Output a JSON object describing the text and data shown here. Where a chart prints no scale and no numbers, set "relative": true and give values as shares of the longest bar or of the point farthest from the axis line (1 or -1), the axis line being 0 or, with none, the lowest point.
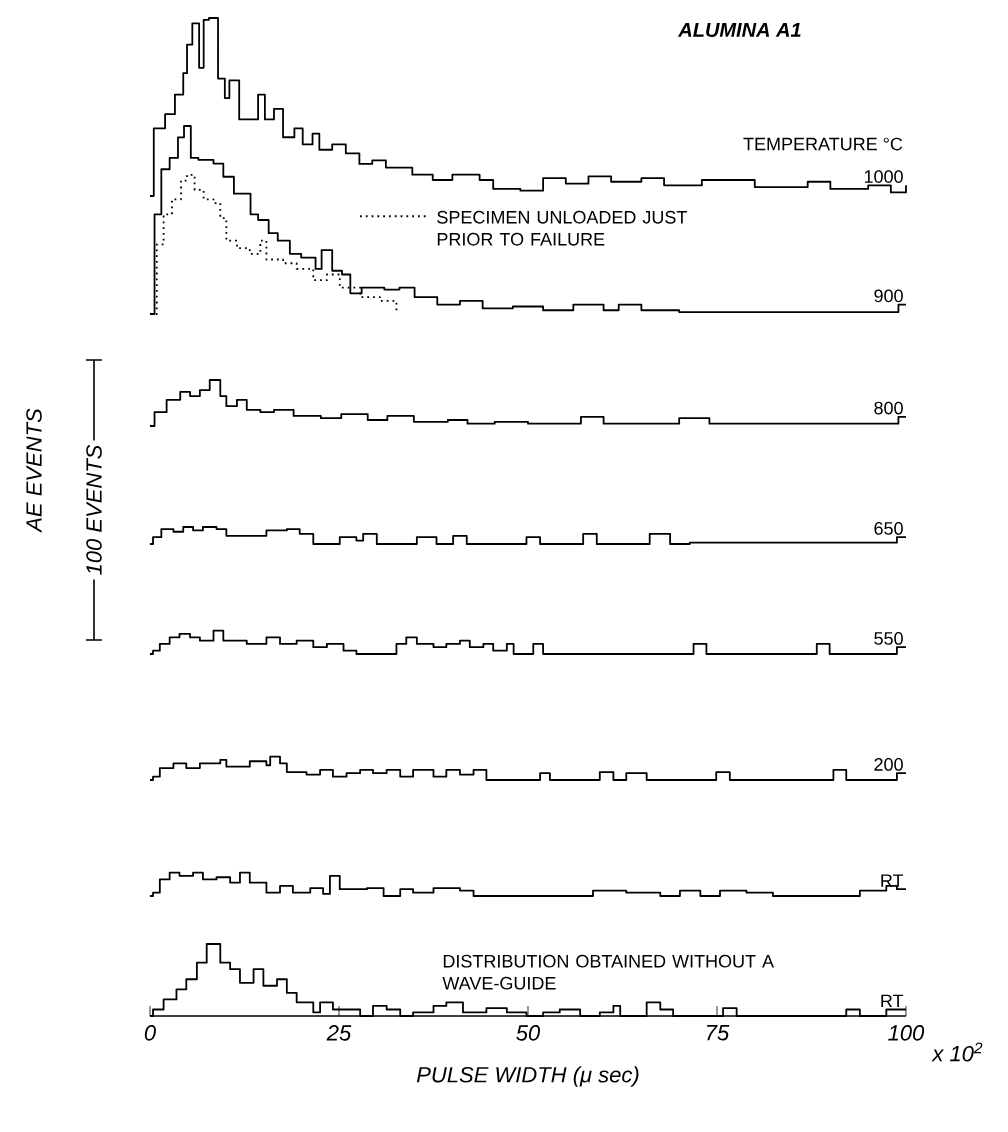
{
  "chart_data": [
    {
      "type": "step",
      "relative": true,
      "title": "ALUMINA A1",
      "annotations": [
        "TEMPERATURE °C",
        "100 EVENTS"
      ],
      "xlim": [
        0,
        100
      ],
      "tick_labels": false,
      "series": [
        {
          "name": "1000",
          "color": "#000000",
          "x": [
            0,
            0.5,
            2.0,
            3.3,
            4.4,
            4.9,
            5.6,
            6.5,
            7.1,
            7.8,
            9.0,
            9.9,
            10.5,
            11.8,
            14.3,
            15.2,
            16.4,
            17.6,
            19.1,
            20.2,
            21.5,
            22.4,
            24.1,
            25.9,
            27.7,
            29.4,
            31.2,
            34.7,
            37.4,
            40,
            43.6,
            45.4,
            49,
            52,
            55,
            58,
            61,
            65,
            68,
            73,
            80,
            87,
            90,
            95,
            98,
            100
          ],
          "values": [
            0,
            0.38,
            0.46,
            0.57,
            0.69,
            0.85,
            0.97,
            0.72,
            0.99,
            1,
            0.66,
            0.55,
            0.65,
            0.43,
            0.57,
            0.43,
            0.49,
            0.33,
            0.38,
            0.29,
            0.35,
            0.26,
            0.29,
            0.24,
            0.18,
            0.2,
            0.16,
            0.12,
            0.09,
            0.12,
            0.09,
            0.04,
            0.03,
            0.1,
            0.07,
            0.11,
            0.08,
            0.1,
            0.06,
            0.09,
            0.05,
            0.08,
            0.04,
            0.06,
            0.02,
            0.06
          ]
        }
      ]
    },
    {
      "type": "step",
      "relative": true,
      "xlim": [
        0,
        100
      ],
      "tick_labels": false,
      "series": [
        {
          "name": "900",
          "color": "#000000",
          "x": [
            0,
            0.6,
            1.5,
            2.6,
            3.7,
            4.5,
            5.4,
            6.4,
            8.4,
            9.7,
            11.1,
            13.3,
            14.3,
            15.7,
            16.9,
            18.5,
            20,
            21.9,
            22.7,
            24.1,
            25.4,
            26.5,
            28,
            31,
            33,
            35,
            38,
            41,
            44,
            48,
            52,
            56,
            60,
            62,
            65,
            70,
            99,
            100
          ],
          "values": [
            0,
            0.53,
            0.77,
            0.83,
            0.94,
            1,
            0.83,
            0.82,
            0.8,
            0.73,
            0.64,
            0.53,
            0.5,
            0.43,
            0.39,
            0.32,
            0.3,
            0.24,
            0.34,
            0.23,
            0.21,
            0.11,
            0.14,
            0.13,
            0.14,
            0.09,
            0.05,
            0.07,
            0.03,
            0.04,
            0.02,
            0.05,
            0.02,
            0.05,
            0.02,
            0.01,
            0.05,
            0.05
          ]
        },
        {
          "name": "SPECIMEN UNLOADED JUST PRIOR TO FAILURE",
          "color": "#000000",
          "line_style": "dotted",
          "x": [
            0,
            0.9,
            1.8,
            2.9,
            4.1,
            4.9,
            5.9,
            7.1,
            8.4,
            9.3,
            10.1,
            11.5,
            13.2,
            14.6,
            15.4,
            17.6,
            19.4,
            21.6,
            23.4,
            25.1,
            27.8,
            30.4,
            32.6
          ],
          "values": [
            0,
            0.37,
            0.53,
            0.61,
            0.71,
            0.74,
            0.66,
            0.61,
            0.59,
            0.51,
            0.39,
            0.35,
            0.32,
            0.39,
            0.29,
            0.27,
            0.24,
            0.18,
            0.21,
            0.14,
            0.09,
            0.07,
            0
          ]
        }
      ]
    },
    {
      "type": "step",
      "relative": true,
      "ylabel": "AE EVENTS",
      "xlim": [
        0,
        100
      ],
      "tick_labels": false,
      "series": [
        {
          "name": "800",
          "color": "#000000",
          "x": [
            0,
            0.6,
            2.2,
            4.0,
            5.3,
            6.6,
            7.9,
            9.3,
            10.1,
            11.5,
            12.8,
            14.6,
            16.4,
            19.0,
            22.6,
            25.3,
            28.8,
            31.4,
            34.9,
            39.4,
            42.0,
            45.6,
            50,
            57,
            60,
            70,
            74,
            99,
            100
          ],
          "values": [
            0,
            0.3,
            0.57,
            0.74,
            0.65,
            0.78,
            1,
            0.65,
            0.43,
            0.57,
            0.35,
            0.3,
            0.35,
            0.22,
            0.17,
            0.26,
            0.13,
            0.22,
            0.09,
            0.13,
            0.05,
            0.09,
            0.05,
            0.2,
            0.05,
            0.17,
            0.05,
            0.2,
            0.2
          ]
        }
      ]
    },
    {
      "type": "step",
      "relative": true,
      "xlim": [
        0,
        100
      ],
      "tick_labels": false,
      "series": [
        {
          "name": "650",
          "color": "#000000",
          "x": [
            0,
            0.4,
            1.5,
            3.1,
            4.4,
            5.7,
            7.0,
            8.8,
            10.1,
            12.8,
            15.4,
            18.1,
            19.8,
            21.6,
            25.1,
            27.3,
            28.2,
            30.0,
            35.3,
            37.9,
            40.1,
            41.9,
            49.8,
            51.6,
            57.3,
            59.1,
            66.1,
            68.8,
            71.4,
            98.8,
            100
          ],
          "values": [
            0,
            0.4,
            0.88,
            0.72,
            1,
            0.8,
            1,
            0.88,
            0.48,
            0.48,
            0.8,
            0.88,
            0.6,
            0,
            0.4,
            0.2,
            0.6,
            0,
            0.4,
            0,
            0.48,
            0,
            0.4,
            0,
            0.6,
            0,
            0.6,
            0,
            0.08,
            0.4,
            0.4
          ]
        }
      ]
    },
    {
      "type": "step",
      "relative": true,
      "xlim": [
        0,
        100
      ],
      "tick_labels": false,
      "series": [
        {
          "name": "550",
          "color": "#000000",
          "x": [
            0,
            0.4,
            1.3,
            2.6,
            3.9,
            5.3,
            6.6,
            8.4,
            9.7,
            12.8,
            15.4,
            17.2,
            19.4,
            21.6,
            23.4,
            25.6,
            27.3,
            32.6,
            33.9,
            35.3,
            37.5,
            39.2,
            41.0,
            42.3,
            44.1,
            45.4,
            47.2,
            48.1,
            50.7,
            52.0,
            71.9,
            73.6,
            88.2,
            89.9,
            98.8,
            100
          ],
          "values": [
            0,
            0.14,
            0.43,
            0.71,
            0.86,
            0.71,
            0.57,
            1,
            0.57,
            0.43,
            0.71,
            0.43,
            0.57,
            0.29,
            0.43,
            0.14,
            0,
            0.43,
            0.71,
            0.43,
            0.29,
            0.43,
            0.57,
            0.29,
            0.43,
            0.14,
            0.43,
            0,
            0.43,
            0,
            0.43,
            0,
            0.43,
            0,
            0.29,
            0.29
          ]
        }
      ]
    },
    {
      "type": "step",
      "relative": true,
      "xlim": [
        0,
        100
      ],
      "tick_labels": false,
      "series": [
        {
          "name": "200",
          "color": "#000000",
          "x": [
            0,
            0.4,
            1.3,
            3.1,
            4.8,
            6.6,
            9.3,
            10.1,
            13.2,
            15.4,
            15.9,
            17.2,
            18.1,
            20.7,
            22.5,
            24.2,
            26.0,
            27.8,
            29.5,
            31.3,
            33.1,
            34.8,
            37.5,
            39.2,
            41.0,
            42.8,
            44.5,
            51.6,
            52.9,
            59.5,
            61.3,
            63.0,
            65.7,
            74.9,
            76.7,
            90.4,
            92.1,
            98.8,
            100
          ],
          "values": [
            0,
            0.14,
            0.51,
            0.71,
            0.51,
            0.71,
            0.86,
            0.57,
            0.8,
            0.63,
            1,
            0.71,
            0.34,
            0.23,
            0.43,
            0.14,
            0.29,
            0.43,
            0.29,
            0.43,
            0.14,
            0.43,
            0.14,
            0.43,
            0.23,
            0.43,
            0,
            0.29,
            0,
            0.34,
            0,
            0.29,
            0,
            0.34,
            0,
            0.43,
            0,
            0.29,
            0.29
          ]
        }
      ]
    },
    {
      "type": "step",
      "relative": true,
      "xlim": [
        0,
        100
      ],
      "tick_labels": false,
      "series": [
        {
          "name": "RT",
          "color": "#000000",
          "x": [
            0,
            0.4,
            1.3,
            2.6,
            3.9,
            5.7,
            7.0,
            8.8,
            10.6,
            11.9,
            13.2,
            15.4,
            17.2,
            18.9,
            21.2,
            22.9,
            23.8,
            25.1,
            28.7,
            30.9,
            33.1,
            34.8,
            37.5,
            41.0,
            42.8,
            58.6,
            63.0,
            67.5,
            70.1,
            72.8,
            75.4,
            78.9,
            82.4,
            93.9,
            97.4,
            98.8,
            100
          ],
          "values": [
            0,
            0.14,
            0.71,
            1,
            0.86,
            1,
            0.71,
            0.8,
            0.57,
            1,
            0.57,
            0.14,
            0.43,
            0.14,
            0.34,
            0.09,
            0.86,
            0.29,
            0.34,
            0,
            0.29,
            0.14,
            0.34,
            0.23,
            0,
            0.23,
            0.14,
            0,
            0.23,
            0,
            0.23,
            0.14,
            0,
            0.23,
            0.43,
            0.29,
            0.29
          ]
        }
      ]
    },
    {
      "type": "step",
      "relative": true,
      "xlabel": "PULSE WIDTH (μ sec)",
      "annotations": [
        "DISTRIBUTION OBTAINED WITHOUT A WAVE-GUIDE",
        "x 10$^{2}$"
      ],
      "xlim": [
        0,
        100
      ],
      "xticks": [
        0,
        25,
        50,
        75,
        100
      ],
      "tick_labels": "x",
      "series": [
        {
          "name": "RT",
          "color": "#000000",
          "x": [
            0,
            0.4,
            1.8,
            3.5,
            4.8,
            6.2,
            7.5,
            9.3,
            10.6,
            11.9,
            13.7,
            15.0,
            16.8,
            18.1,
            19.4,
            21.6,
            22.5,
            24.2,
            27.8,
            29.5,
            31.3,
            33.1,
            34.8,
            37.5,
            39.2,
            41.4,
            44.5,
            47.2,
            49.8,
            52.0,
            54.2,
            56.9,
            59.5,
            61.3,
            62.2,
            65.7,
            67.5,
            69.2,
            75.8,
            77.6,
            92.1,
            93.9,
            97.4,
            100
          ],
          "values": [
            0,
            0.09,
            0.23,
            0.37,
            0.51,
            0.74,
            1,
            0.74,
            0.65,
            0.46,
            0.65,
            0.42,
            0.51,
            0.32,
            0.19,
            0.05,
            0.19,
            0.09,
            0,
            0.14,
            0.09,
            0,
            0.05,
            0.14,
            0.19,
            0.05,
            0.11,
            0.05,
            0,
            0.05,
            0.09,
            0,
            0.05,
            0.14,
            0,
            0.19,
            0.09,
            0,
            0.11,
            0,
            0.09,
            0,
            0.09,
            0.09
          ]
        }
      ]
    }
  ]
}
